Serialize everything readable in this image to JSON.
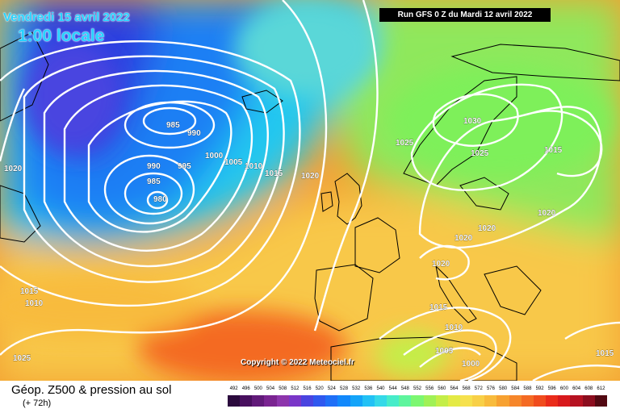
{
  "header": {
    "date": "Vendredi 15 avril 2022",
    "local_time": "1:00 locale",
    "run_info": "Run GFS 0 Z du Mardi 12 avril 2022"
  },
  "map": {
    "copyright": "Copyright © 2022 Meteociel.fr",
    "isobar_labels": [
      "985",
      "990",
      "1000",
      "1005",
      "1010",
      "1015",
      "990",
      "995",
      "985",
      "980",
      "1020",
      "1025",
      "1030",
      "1025",
      "1015",
      "1020",
      "1020",
      "1020",
      "1020",
      "1015",
      "1010",
      "1015",
      "1010",
      "1005",
      "1000",
      "1015",
      "1025",
      "1020"
    ],
    "colors": {
      "isobar": "#ffffff",
      "coastline": "#000000",
      "date_text": "#27d3ff"
    }
  },
  "legend": {
    "title": "Géop. Z500 & pression au sol",
    "subtitle": "(+ 72h)",
    "scale_values": [
      "492",
      "496",
      "500",
      "504",
      "508",
      "512",
      "516",
      "520",
      "524",
      "528",
      "532",
      "536",
      "540",
      "544",
      "548",
      "552",
      "556",
      "560",
      "564",
      "568",
      "572",
      "576",
      "580",
      "584",
      "588",
      "592",
      "596",
      "600",
      "604",
      "608",
      "612"
    ],
    "scale_colors": [
      "#2b0a3d",
      "#480f5e",
      "#611a79",
      "#7a2491",
      "#8d35ac",
      "#7a36c8",
      "#4a44e0",
      "#2f58ef",
      "#1f6ff7",
      "#1288fb",
      "#14a4f9",
      "#22c1f5",
      "#35d9e8",
      "#47ecc9",
      "#5ef59d",
      "#7cf771",
      "#a0f156",
      "#c4ee48",
      "#e4ea45",
      "#f6e14e",
      "#f8d047",
      "#f8bb3c",
      "#f7a131",
      "#f6862a",
      "#f46a23",
      "#f04c1d",
      "#ea2c1a",
      "#d8191c",
      "#b61221",
      "#8c0d1e",
      "#520912"
    ]
  }
}
